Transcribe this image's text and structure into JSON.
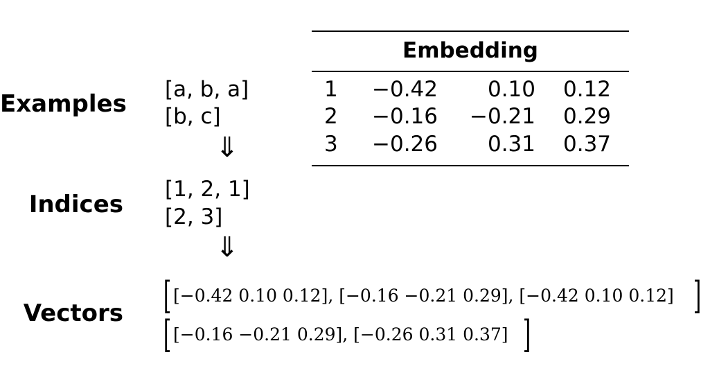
{
  "labels": {
    "examples": "Examples",
    "indices": "Indices",
    "vectors": "Vectors"
  },
  "examples": [
    "[a, b, a]",
    "[b, c]"
  ],
  "indices": [
    "[1, 2, 1]",
    "[2, 3]"
  ],
  "arrow": "⇓",
  "embedding": {
    "title": "Embedding",
    "rows": [
      {
        "index": "1",
        "v1": "−0.42",
        "v2": "0.10",
        "v3": "0.12"
      },
      {
        "index": "2",
        "v1": "−0.16",
        "v2": "−0.21",
        "v3": "0.29"
      },
      {
        "index": "3",
        "v1": "−0.26",
        "v2": "0.31",
        "v3": "0.37"
      }
    ]
  },
  "vectors": [
    "[−0.42 0.10 0.12], [−0.16 −0.21 0.29], [−0.42 0.10 0.12]",
    "[−0.16 −0.21 0.29], [−0.26 0.31 0.37]"
  ],
  "brackets": {
    "open": "[",
    "close": "]"
  }
}
